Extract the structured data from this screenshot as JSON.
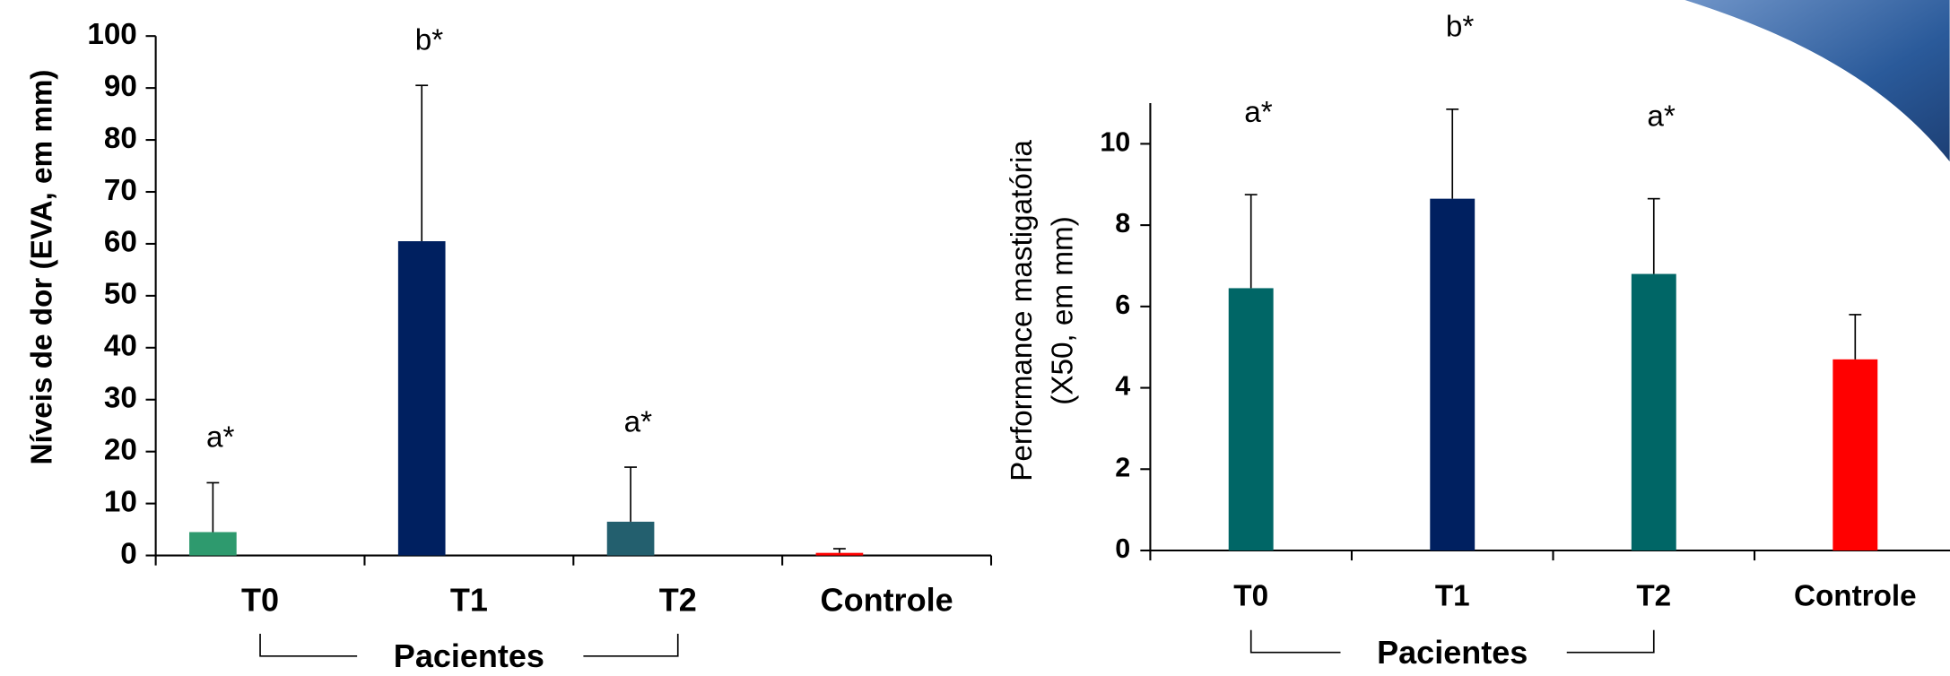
{
  "chart_data": [
    {
      "type": "bar",
      "y_label": [
        "Níveis de dor (EVA, em mm)"
      ],
      "categories": [
        "T0",
        "T1",
        "T2",
        "Controle"
      ],
      "values": [
        4.5,
        60.5,
        6.5,
        0.5
      ],
      "errors": [
        9.5,
        30,
        10.5,
        0.8
      ],
      "colors": [
        "#2e9a6e",
        "#002060",
        "#235f6e",
        "#ff0000"
      ],
      "labels": [
        "a*",
        "b*",
        "a*",
        null
      ],
      "group_label": "Pacientes",
      "ylim": [
        0,
        100
      ],
      "yticks": [
        0,
        10,
        20,
        30,
        40,
        50,
        60,
        70,
        80,
        90,
        100
      ]
    },
    {
      "type": "bar",
      "y_label": [
        "Performance mastigatória",
        "(X50, em mm)"
      ],
      "categories": [
        "T0",
        "T1",
        "T2",
        "Controle"
      ],
      "values": [
        6.45,
        8.65,
        6.8,
        4.7
      ],
      "errors": [
        2.3,
        2.2,
        1.85,
        1.1
      ],
      "colors": [
        "#006666",
        "#002060",
        "#006666",
        "#ff0000"
      ],
      "labels": [
        "a*",
        "b*",
        "a*",
        null
      ],
      "group_label": "Pacientes",
      "ylim": [
        0,
        11
      ],
      "yticks": [
        0,
        2,
        4,
        6,
        8,
        10
      ]
    }
  ]
}
